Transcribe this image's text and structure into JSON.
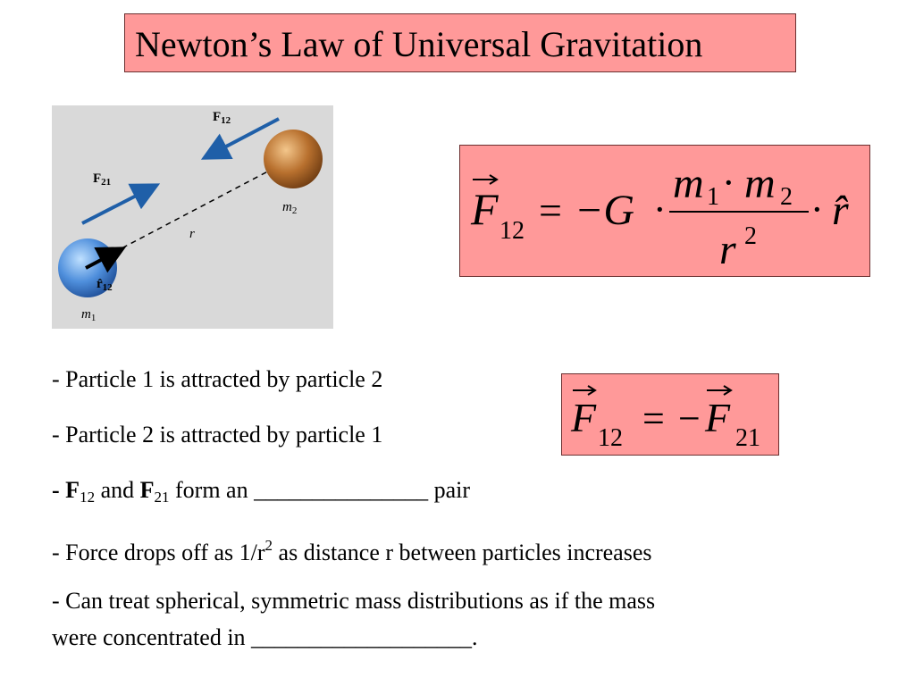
{
  "title": "Newton’s Law of Universal Gravitation",
  "figure": {
    "label_f12": "F",
    "label_f12_sub": "12",
    "label_f21": "F",
    "label_f21_sub": "21",
    "label_r": "r",
    "label_m1": "m",
    "label_m1_sub": "1",
    "label_m2": "m",
    "label_m2_sub": "2",
    "label_r12": "r̂",
    "label_r12_sub": "12",
    "colors": {
      "background": "#d9d9d9",
      "arrow": "#1f5fa8",
      "sphere1": "#4f8fdc",
      "sphere2": "#b8702e"
    }
  },
  "equation_main": {
    "lhs": "F",
    "lhs_sub": "12",
    "equals": "=",
    "minus_g": "−G",
    "dot": "·",
    "num_m1": "m",
    "num_m1_sub": "1",
    "num_m2": "m",
    "num_m2_sub": "2",
    "den": "r",
    "den_sup": "2",
    "rhat": "r̂"
  },
  "equation_pair": {
    "lhs": "F",
    "lhs_sub": "12",
    "equals": "=",
    "minus": "−",
    "rhs": "F",
    "rhs_sub": "21"
  },
  "bullets": {
    "b1": "-  Particle 1 is attracted by particle 2",
    "b2": "-  Particle 2 is attracted by particle 1",
    "b3_dash": "-  ",
    "b3_f": "F",
    "b3_sub1": "12",
    "b3_and": " and ",
    "b3_f2": "F",
    "b3_sub2": "21",
    "b3_rest": " form an _______________ pair",
    "b4_a": "-  Force drops off as 1/r",
    "b4_sup": "2",
    "b4_b": " as distance r between particles increases",
    "b5": "-  Can treat spherical, symmetric mass distributions as if the mass",
    "b6": "were concentrated in ___________________."
  },
  "colors": {
    "box_fill": "#ff9999",
    "box_border": "#6b3030"
  }
}
